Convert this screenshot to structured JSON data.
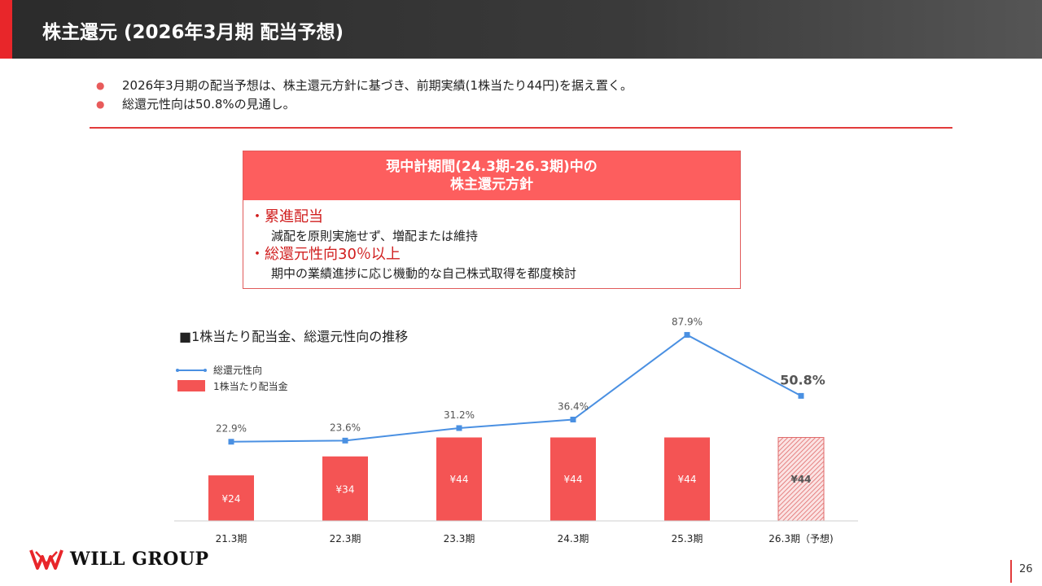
{
  "header": {
    "title": "株主還元 (2026年3月期 配当予想)"
  },
  "bullets": [
    "2026年3月期の配当予想は、株主還元方針に基づき、前期実績(1株当たり44円)を据え置く。",
    "総還元性向は50.8%の見通し。"
  ],
  "policy": {
    "title_line1": "現中計期間(24.3期-26.3期)中の",
    "title_line2": "株主還元方針",
    "items": [
      {
        "heading": "・累進配当",
        "detail": "減配を原則実施せず、増配または維持"
      },
      {
        "heading": "・総還元性向30％以上",
        "detail": "期中の業績進捗に応じ機動的な自己株式取得を都度検討"
      }
    ]
  },
  "chart_title": "■1株当たり配当金、総還元性向の推移",
  "colors": {
    "bar": "#f45454",
    "line": "#4a90e2",
    "accent": "#e8262a",
    "header": "#333333"
  },
  "chart_data": {
    "type": "bar",
    "categories": [
      "21.3期",
      "22.3期",
      "23.3期",
      "24.3期",
      "25.3期",
      "26.3期（予想)"
    ],
    "series": [
      {
        "name": "1株当たり配当金",
        "type": "bar",
        "values": [
          24,
          34,
          44,
          44,
          44,
          44
        ],
        "labels": [
          "¥24",
          "¥34",
          "¥44",
          "¥44",
          "¥44",
          "¥44"
        ],
        "forecast_index": 5
      },
      {
        "name": "総還元性向",
        "type": "line",
        "values": [
          22.9,
          23.6,
          31.2,
          36.4,
          87.9,
          50.8
        ],
        "labels": [
          "22.9%",
          "23.6%",
          "31.2%",
          "36.4%",
          "87.9%",
          "50.8%"
        ]
      }
    ],
    "legend": [
      "総還元性向",
      "1株当たり配当金"
    ],
    "y_bar_range": [
      0,
      100
    ],
    "y_line_range": [
      0,
      100
    ]
  },
  "logo": {
    "text": "WILL GROUP"
  },
  "page_number": "26"
}
